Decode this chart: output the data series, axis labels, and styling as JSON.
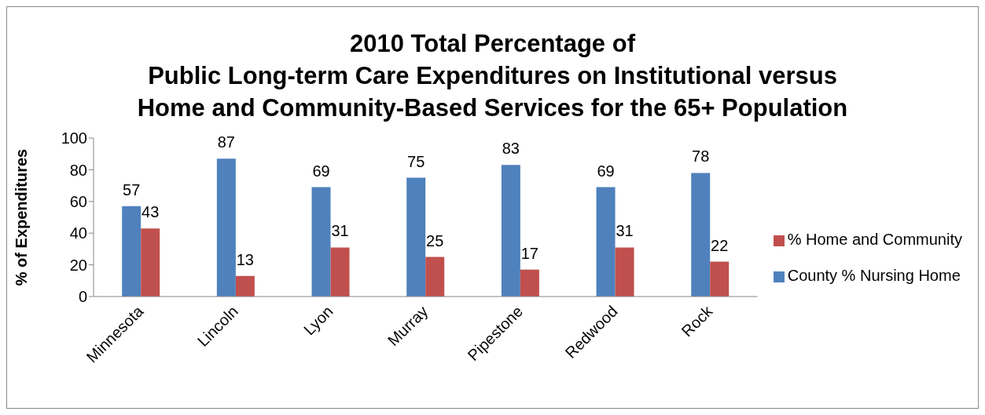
{
  "chart_data": {
    "type": "bar",
    "title": "2010 Total Percentage of\nPublic Long-term Care Expenditures on Institutional versus\nHome and Community-Based Services for the 65+ Population",
    "ylabel": "% of Expenditures",
    "categories": [
      "Minnesota",
      "Lincoln",
      "Lyon",
      "Murray",
      "Pipestone",
      "Redwood",
      "Rock"
    ],
    "series": [
      {
        "name": "County % Nursing Home",
        "color": "#4f81bd",
        "values": [
          57,
          87,
          69,
          75,
          83,
          69,
          78
        ]
      },
      {
        "name": "% Home and Community",
        "color": "#c0504d",
        "values": [
          43,
          13,
          31,
          25,
          17,
          31,
          22
        ]
      }
    ],
    "ylim": [
      0,
      100
    ],
    "yticks": [
      0,
      20,
      40,
      60,
      80,
      100
    ],
    "grid": false,
    "legend": "right",
    "data_labels": true
  }
}
